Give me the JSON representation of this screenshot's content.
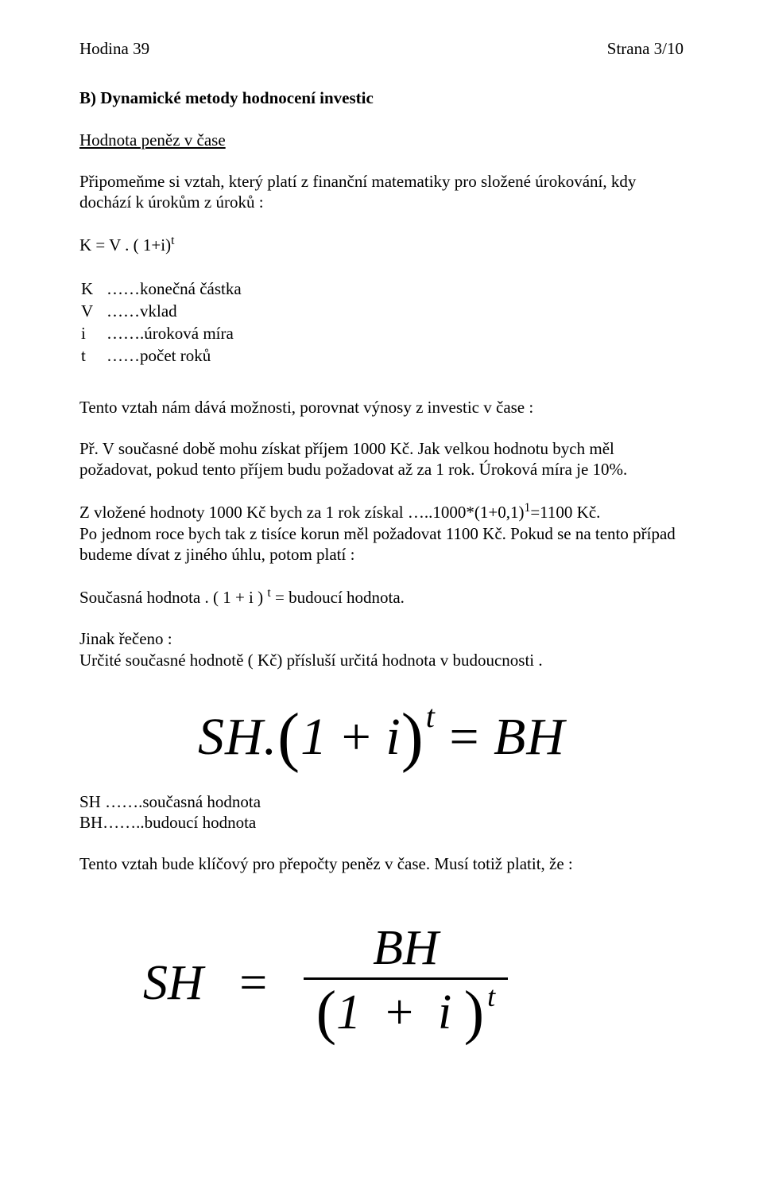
{
  "header": {
    "left": "Hodina 39",
    "right": "Strana 3/10"
  },
  "section_b_title": "B) Dynamické metody hodnocení investic",
  "subtitle": "Hodnota peněz v čase",
  "intro1": "Připomeňme si vztah, který platí z finanční matematiky pro složené úrokování, kdy dochází k úrokům z úroků :",
  "eq1_a": "K = V . ( 1+i)",
  "eq1_sup": "t",
  "defs": [
    {
      "s": "K",
      "d": "……konečná částka"
    },
    {
      "s": "V",
      "d": "……vklad"
    },
    {
      "s": "i",
      "d": "…….úroková míra"
    },
    {
      "s": "t",
      "d": "……počet roků"
    }
  ],
  "p2": "Tento vztah nám dává možnosti, porovnat výnosy z investic v čase :",
  "p3": "Př. V současné době mohu získat příjem 1000 Kč. Jak velkou hodnotu bych měl požadovat, pokud tento příjem budu požadovat až za 1 rok. Úroková míra je 10%.",
  "p4a": "Z vložené hodnoty 1000 Kč bych za 1 rok získal …..1000*(1+0,1)",
  "p4sup": "1",
  "p4b": "=1100 Kč.",
  "p5": "Po jednom roce bych tak z tisíce korun měl požadovat 1100 Kč. Pokud se na tento případ budeme dívat z jiného úhlu, potom platí :",
  "p6a": "Současná hodnota . ( 1 + i ) ",
  "p6sup": "t",
  "p6b": " = budoucí hodnota.",
  "p7": "Jinak řečeno :",
  "p8": "Určité současné hodnotě ( Kč) přísluší určitá hodnota v budoucnosti .",
  "eq_big": {
    "sh": "SH",
    "dot": ".",
    "lp": "(",
    "one": "1",
    "plus": "+",
    "i": "i",
    "rp": ")",
    "t": "t",
    "eq": "=",
    "bh": "BH"
  },
  "defs2a": "SH …….současná hodnota",
  "defs2b": "BH……..budoucí hodnota",
  "p9": "Tento vztah bude klíčový pro přepočty peněz v čase.  Musí totiž platit, že :",
  "eq_frac": {
    "sh": "SH",
    "eq": "=",
    "bh": "BH",
    "lp": "(",
    "one": "1",
    "plus": "+",
    "i": "i",
    "rp": ")",
    "t": "t"
  }
}
